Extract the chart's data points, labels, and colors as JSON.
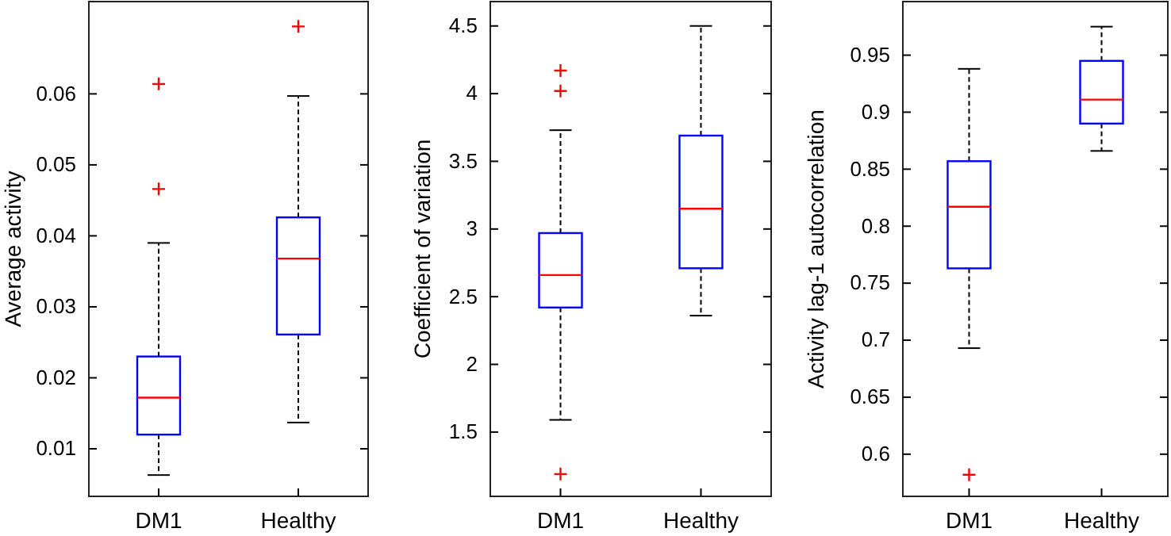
{
  "chart_data": [
    {
      "type": "box",
      "ylabel": "Average activity",
      "categories": [
        "DM1",
        "Healthy"
      ],
      "ylim": [
        0.0033,
        0.073
      ],
      "yticks": [
        0.01,
        0.02,
        0.03,
        0.04,
        0.05,
        0.06
      ],
      "series": [
        {
          "color": "#0000ff",
          "boxes": [
            {
              "low": 0.0063,
              "q1": 0.012,
              "median": 0.0172,
              "q3": 0.023,
              "high": 0.039,
              "outliers": [
                0.0614,
                0.0466
              ]
            },
            {
              "low": 0.0137,
              "q1": 0.0261,
              "median": 0.0368,
              "q3": 0.0426,
              "high": 0.0597,
              "outliers": [
                0.0695
              ]
            }
          ]
        }
      ]
    },
    {
      "type": "box",
      "ylabel": "Coefficient of variation",
      "categories": [
        "DM1",
        "Healthy"
      ],
      "ylim": [
        1.025,
        4.68
      ],
      "yticks": [
        1.5,
        2,
        2.5,
        3,
        3.5,
        4,
        4.5
      ],
      "series": [
        {
          "color": "#0000ff",
          "boxes": [
            {
              "low": 1.59,
              "q1": 2.42,
              "median": 2.66,
              "q3": 2.97,
              "high": 3.73,
              "outliers": [
                4.17,
                4.02,
                1.19
              ]
            },
            {
              "low": 2.36,
              "q1": 2.71,
              "median": 3.15,
              "q3": 3.69,
              "high": 4.5
            }
          ]
        }
      ]
    },
    {
      "type": "box",
      "ylabel": "Activity lag-1 autocorrelation",
      "categories": [
        "DM1",
        "Healthy"
      ],
      "ylim": [
        0.563,
        0.997
      ],
      "yticks": [
        0.6,
        0.65,
        0.7,
        0.75,
        0.8,
        0.85,
        0.9,
        0.95
      ],
      "series": [
        {
          "color": "#0000ff",
          "boxes": [
            {
              "low": 0.693,
              "q1": 0.763,
              "median": 0.817,
              "q3": 0.857,
              "high": 0.938,
              "outliers": [
                0.582
              ]
            },
            {
              "low": 0.866,
              "q1": 0.89,
              "median": 0.911,
              "q3": 0.945,
              "high": 0.975
            }
          ]
        }
      ]
    }
  ]
}
